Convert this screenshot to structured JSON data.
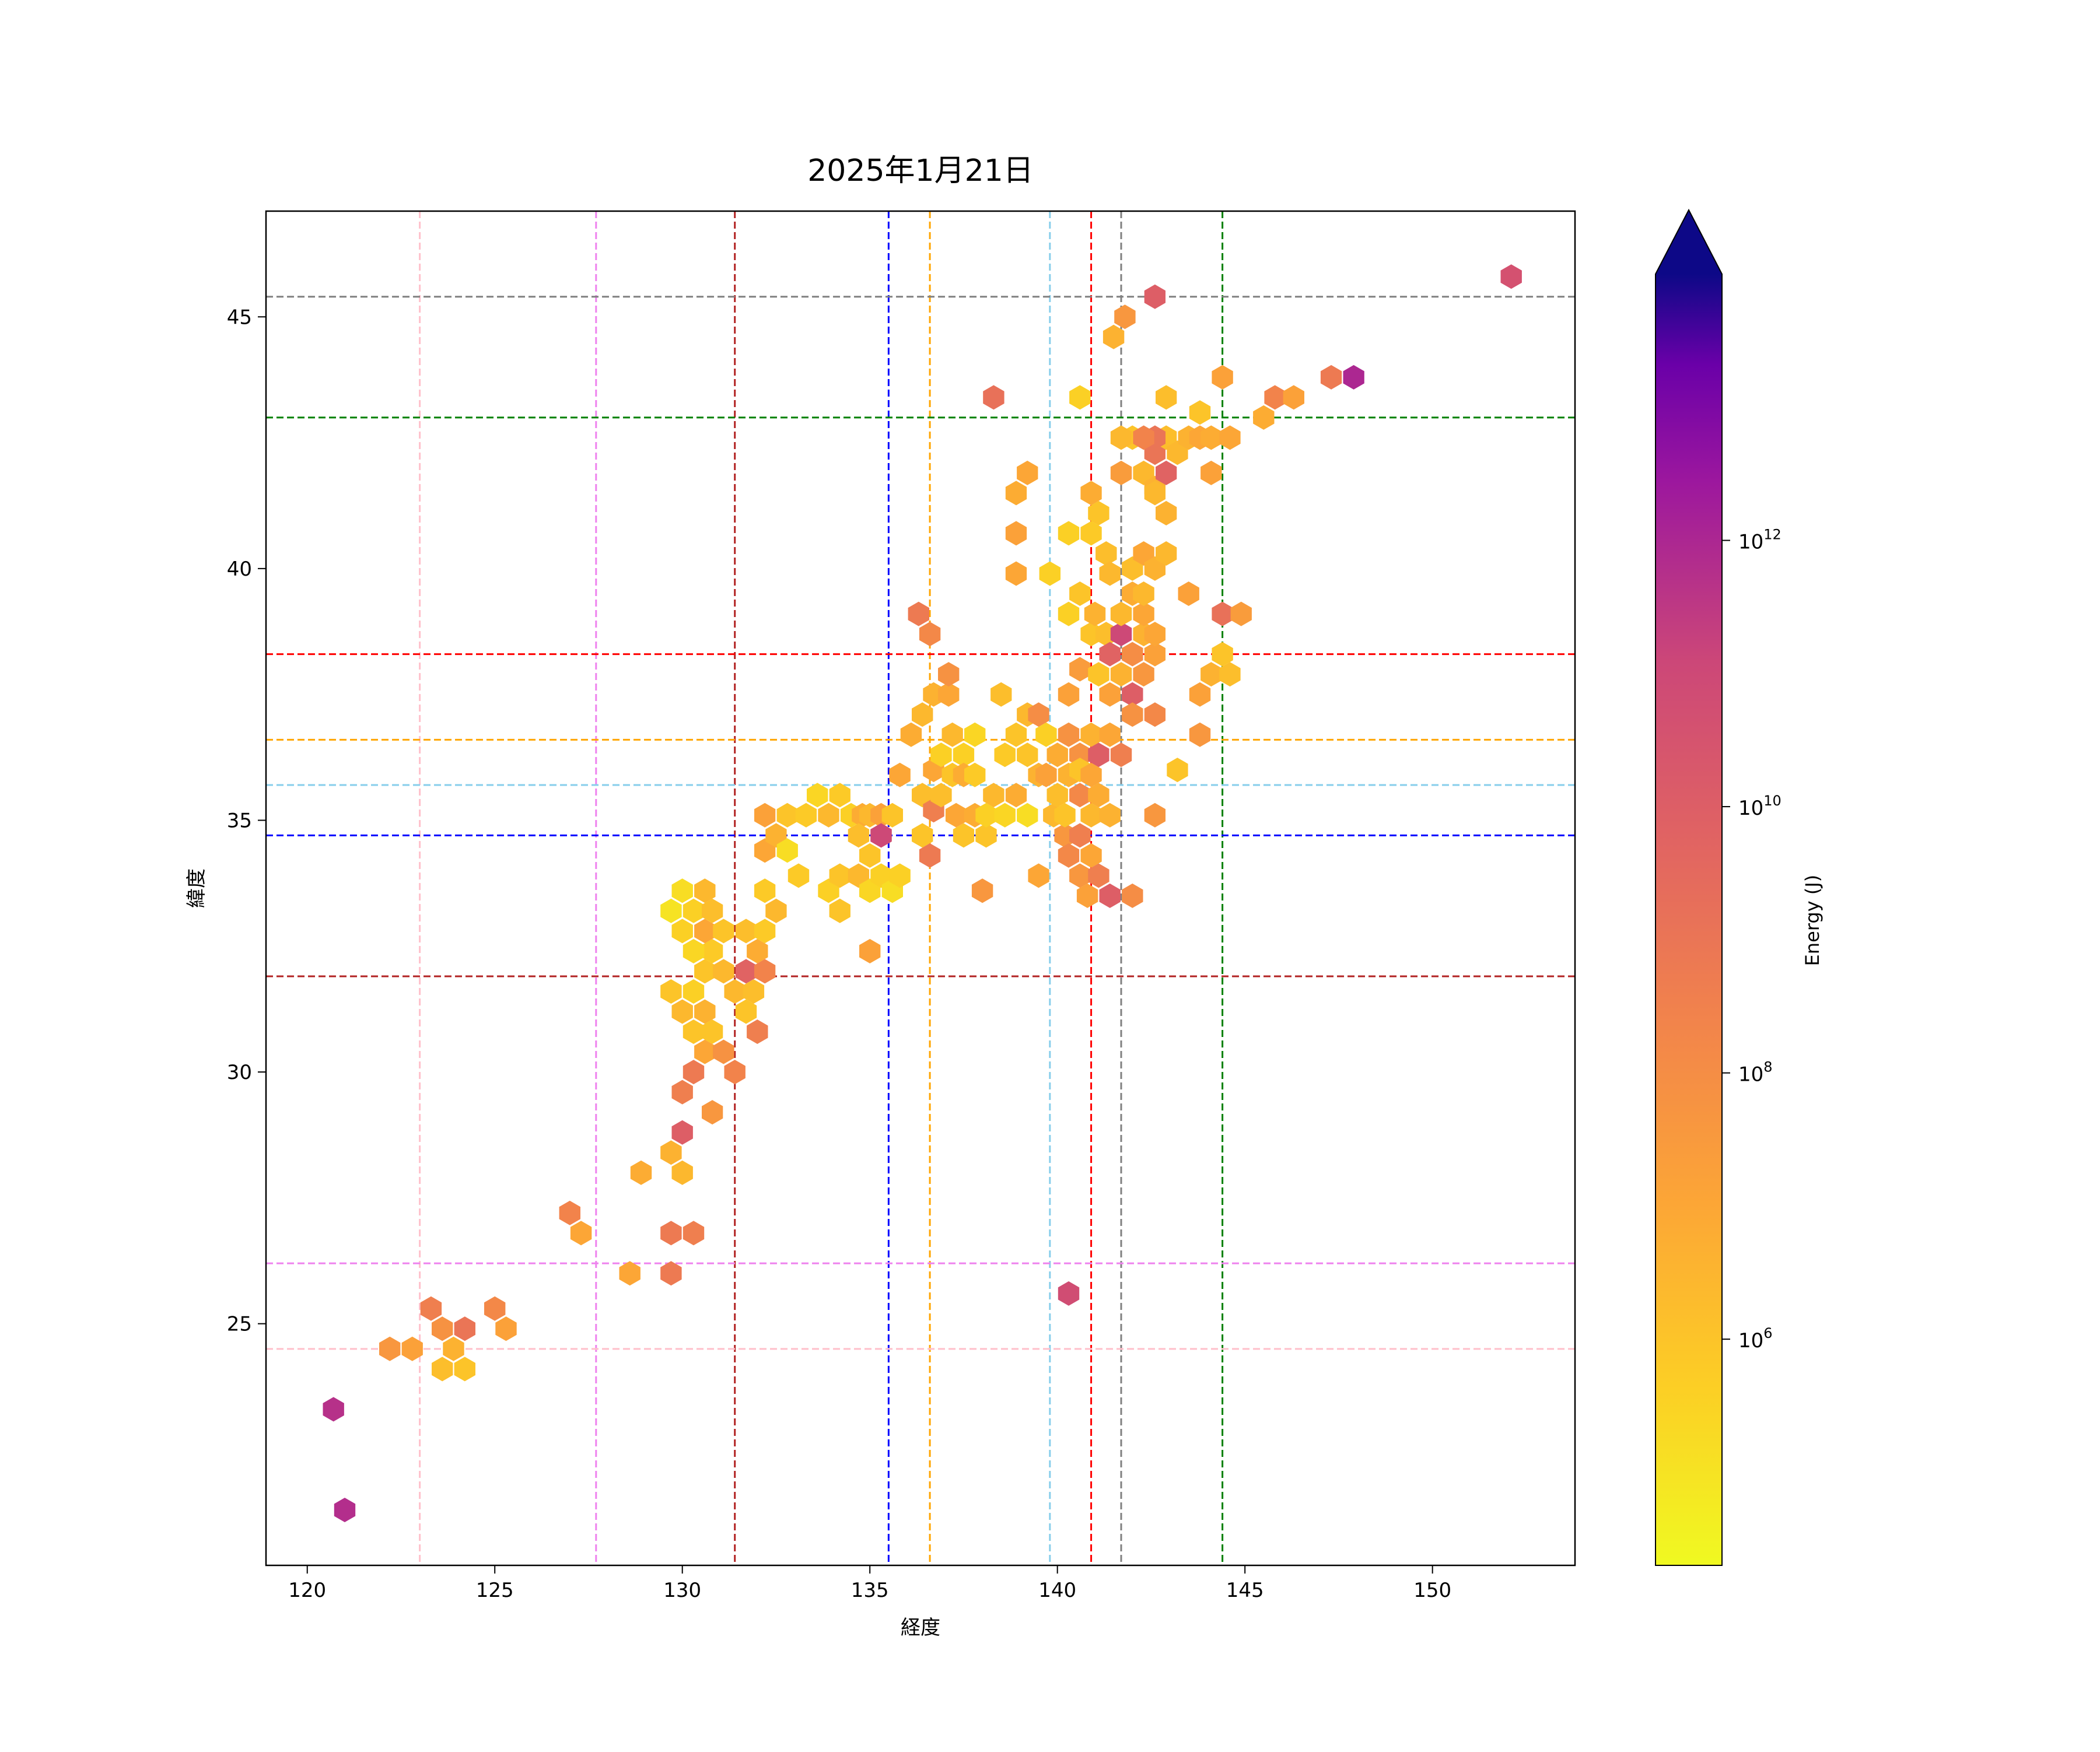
{
  "chart_data": {
    "type": "hexbin",
    "title": "2025年1月21日",
    "xlabel": "経度",
    "ylabel": "緯度",
    "xlim": [
      118.9,
      153.8
    ],
    "ylim": [
      20.2,
      47.1
    ],
    "x_ticks": [
      120,
      125,
      130,
      135,
      140,
      145,
      150
    ],
    "y_ticks": [
      25,
      30,
      35,
      40,
      45
    ],
    "grid": false,
    "colorbar": {
      "label": "Energy (J)",
      "scale": "log",
      "colormap": "plasma_r",
      "range": [
        20000,
        100000000000000.0
      ],
      "extend": "max",
      "ticks": [
        {
          "base": "10",
          "exp": "6",
          "value": 1000000.0
        },
        {
          "base": "10",
          "exp": "8",
          "value": 100000000.0
        },
        {
          "base": "10",
          "exp": "10",
          "value": 10000000000.0
        },
        {
          "base": "10",
          "exp": "12",
          "value": 1000000000000.0
        }
      ]
    },
    "reference_lines": {
      "vertical": [
        {
          "x": 123.0,
          "color": "#ffc0cb"
        },
        {
          "x": 127.7,
          "color": "#ee82ee"
        },
        {
          "x": 131.4,
          "color": "#b22222"
        },
        {
          "x": 135.5,
          "color": "#0000ff"
        },
        {
          "x": 136.6,
          "color": "#ffa500"
        },
        {
          "x": 139.8,
          "color": "#87ceeb"
        },
        {
          "x": 140.9,
          "color": "#ff0000"
        },
        {
          "x": 141.7,
          "color": "#808080"
        },
        {
          "x": 144.4,
          "color": "#008000"
        }
      ],
      "horizontal": [
        {
          "y": 24.5,
          "color": "#ffc0cb"
        },
        {
          "y": 26.2,
          "color": "#ee82ee"
        },
        {
          "y": 31.9,
          "color": "#b22222"
        },
        {
          "y": 34.7,
          "color": "#0000ff"
        },
        {
          "y": 35.7,
          "color": "#87ceeb"
        },
        {
          "y": 36.6,
          "color": "#ffa500"
        },
        {
          "y": 38.3,
          "color": "#ff0000"
        },
        {
          "y": 43.0,
          "color": "#008000"
        },
        {
          "y": 45.4,
          "color": "#808080"
        }
      ]
    },
    "points": [
      [
        120.7,
        23.3,
        11.7
      ],
      [
        121.0,
        21.3,
        11.8
      ],
      [
        122.2,
        24.5,
        7.6
      ],
      [
        122.8,
        24.5,
        7.2
      ],
      [
        123.3,
        25.3,
        8.6
      ],
      [
        123.6,
        24.9,
        7.8
      ],
      [
        123.6,
        24.1,
        6.2
      ],
      [
        123.9,
        24.5,
        6.6
      ],
      [
        124.2,
        24.9,
        9.0
      ],
      [
        124.2,
        24.1,
        6.0
      ],
      [
        125.0,
        25.3,
        8.2
      ],
      [
        125.3,
        24.9,
        7.2
      ],
      [
        127.0,
        27.2,
        8.4
      ],
      [
        127.3,
        26.8,
        7.0
      ],
      [
        128.6,
        26.0,
        7.0
      ],
      [
        128.9,
        28.0,
        6.8
      ],
      [
        129.7,
        26.8,
        8.8
      ],
      [
        129.7,
        26.0,
        8.8
      ],
      [
        130.3,
        26.8,
        8.6
      ],
      [
        129.7,
        28.4,
        6.6
      ],
      [
        130.0,
        28.0,
        6.4
      ],
      [
        130.0,
        28.8,
        10.0
      ],
      [
        130.8,
        29.2,
        7.6
      ],
      [
        130.0,
        29.6,
        8.6
      ],
      [
        130.3,
        30.0,
        8.8
      ],
      [
        130.6,
        30.4,
        7.0
      ],
      [
        131.1,
        30.4,
        7.8
      ],
      [
        131.4,
        30.0,
        8.4
      ],
      [
        129.7,
        31.6,
        6.0
      ],
      [
        130.0,
        31.2,
        6.4
      ],
      [
        130.3,
        30.8,
        6.0
      ],
      [
        130.3,
        31.6,
        5.6
      ],
      [
        130.6,
        31.2,
        6.6
      ],
      [
        130.8,
        30.8,
        6.0
      ],
      [
        130.6,
        32.0,
        6.0
      ],
      [
        130.8,
        32.4,
        5.8
      ],
      [
        129.7,
        33.2,
        5.0
      ],
      [
        130.0,
        32.8,
        5.6
      ],
      [
        130.0,
        33.6,
        5.2
      ],
      [
        130.3,
        32.4,
        5.4
      ],
      [
        130.3,
        33.2,
        5.6
      ],
      [
        130.6,
        32.8,
        7.0
      ],
      [
        130.6,
        33.6,
        6.4
      ],
      [
        130.8,
        33.2,
        6.2
      ],
      [
        131.1,
        32.8,
        6.0
      ],
      [
        131.1,
        32.0,
        6.4
      ],
      [
        131.4,
        31.6,
        6.4
      ],
      [
        131.7,
        31.2,
        6.0
      ],
      [
        131.7,
        32.0,
        9.8
      ],
      [
        131.7,
        32.8,
        6.2
      ],
      [
        131.9,
        31.6,
        6.2
      ],
      [
        132.0,
        32.4,
        6.8
      ],
      [
        132.0,
        30.8,
        8.6
      ],
      [
        132.2,
        32.0,
        8.4
      ],
      [
        132.2,
        32.8,
        5.8
      ],
      [
        132.2,
        33.6,
        5.8
      ],
      [
        132.5,
        33.2,
        6.4
      ],
      [
        132.2,
        34.4,
        7.0
      ],
      [
        132.2,
        35.1,
        7.2
      ],
      [
        132.5,
        34.7,
        6.6
      ],
      [
        132.8,
        35.1,
        6.0
      ],
      [
        132.8,
        34.4,
        5.2
      ],
      [
        133.1,
        33.9,
        5.8
      ],
      [
        133.3,
        35.1,
        5.8
      ],
      [
        133.6,
        35.5,
        5.4
      ],
      [
        133.9,
        35.1,
        6.4
      ],
      [
        134.2,
        35.5,
        5.8
      ],
      [
        134.5,
        35.1,
        5.6
      ],
      [
        134.8,
        35.1,
        6.8
      ],
      [
        135.0,
        35.1,
        6.4
      ],
      [
        135.3,
        35.1,
        7.2
      ],
      [
        135.6,
        35.1,
        6.0
      ],
      [
        133.9,
        33.6,
        5.6
      ],
      [
        134.2,
        33.9,
        6.0
      ],
      [
        134.2,
        33.2,
        6.0
      ],
      [
        134.7,
        33.9,
        6.4
      ],
      [
        134.7,
        34.7,
        6.2
      ],
      [
        135.0,
        34.3,
        6.0
      ],
      [
        135.0,
        33.6,
        5.4
      ],
      [
        135.3,
        33.9,
        5.6
      ],
      [
        135.3,
        34.7,
        5.8
      ],
      [
        135.6,
        33.6,
        5.2
      ],
      [
        135.8,
        33.9,
        5.6
      ],
      [
        135.0,
        32.4,
        7.2
      ],
      [
        135.3,
        34.7,
        11.0
      ],
      [
        135.8,
        35.9,
        7.0
      ],
      [
        136.1,
        36.7,
        6.8
      ],
      [
        136.4,
        37.1,
        6.4
      ],
      [
        136.4,
        35.5,
        6.2
      ],
      [
        136.4,
        34.7,
        6.0
      ],
      [
        136.7,
        36.0,
        7.0
      ],
      [
        136.7,
        35.2,
        8.6
      ],
      [
        136.7,
        37.5,
        6.6
      ],
      [
        136.6,
        34.3,
        8.8
      ],
      [
        136.9,
        36.3,
        5.6
      ],
      [
        136.9,
        35.5,
        6.2
      ],
      [
        137.1,
        37.5,
        7.0
      ],
      [
        137.1,
        37.9,
        7.8
      ],
      [
        137.2,
        35.9,
        6.0
      ],
      [
        137.2,
        36.7,
        6.4
      ],
      [
        137.3,
        35.1,
        7.0
      ],
      [
        137.5,
        36.3,
        5.6
      ],
      [
        137.5,
        35.9,
        6.8
      ],
      [
        137.5,
        34.7,
        6.0
      ],
      [
        137.8,
        36.7,
        5.4
      ],
      [
        137.8,
        35.1,
        6.8
      ],
      [
        137.8,
        35.9,
        5.8
      ],
      [
        138.0,
        33.6,
        7.6
      ],
      [
        138.1,
        34.7,
        6.0
      ],
      [
        138.1,
        35.1,
        5.6
      ],
      [
        138.3,
        35.5,
        6.4
      ],
      [
        138.5,
        37.5,
        6.2
      ],
      [
        138.6,
        36.3,
        5.8
      ],
      [
        138.6,
        35.1,
        5.4
      ],
      [
        138.9,
        36.7,
        6.0
      ],
      [
        138.9,
        35.5,
        6.8
      ],
      [
        139.2,
        37.1,
        6.4
      ],
      [
        139.2,
        36.3,
        6.0
      ],
      [
        139.2,
        35.1,
        5.2
      ],
      [
        139.5,
        37.1,
        8.0
      ],
      [
        139.5,
        35.9,
        6.6
      ],
      [
        139.5,
        33.9,
        7.0
      ],
      [
        139.7,
        36.7,
        5.6
      ],
      [
        139.7,
        35.9,
        7.2
      ],
      [
        139.9,
        35.1,
        6.4
      ],
      [
        140.0,
        36.3,
        6.8
      ],
      [
        140.0,
        35.5,
        6.2
      ],
      [
        140.2,
        34.7,
        7.6
      ],
      [
        140.2,
        35.1,
        6.0
      ],
      [
        140.3,
        36.7,
        7.8
      ],
      [
        140.3,
        35.9,
        6.6
      ],
      [
        140.3,
        34.3,
        8.2
      ],
      [
        140.6,
        36.3,
        7.8
      ],
      [
        140.6,
        35.5,
        8.2
      ],
      [
        140.6,
        34.7,
        8.6
      ],
      [
        140.6,
        33.9,
        7.6
      ],
      [
        140.6,
        36.0,
        6.0
      ],
      [
        140.8,
        33.5,
        7.2
      ],
      [
        140.9,
        34.3,
        7.0
      ],
      [
        140.9,
        35.1,
        6.4
      ],
      [
        140.9,
        35.9,
        7.0
      ],
      [
        140.9,
        36.7,
        6.6
      ],
      [
        141.1,
        33.9,
        8.6
      ],
      [
        141.1,
        35.5,
        6.8
      ],
      [
        141.1,
        36.3,
        10.0
      ],
      [
        141.4,
        33.5,
        10.0
      ],
      [
        141.4,
        35.1,
        6.6
      ],
      [
        141.4,
        36.7,
        7.0
      ],
      [
        141.7,
        36.3,
        8.6
      ],
      [
        142.0,
        33.5,
        8.0
      ],
      [
        142.6,
        35.1,
        7.6
      ],
      [
        140.3,
        37.5,
        7.2
      ],
      [
        140.3,
        39.1,
        5.6
      ],
      [
        140.6,
        38.0,
        7.4
      ],
      [
        140.6,
        39.5,
        6.0
      ],
      [
        140.9,
        38.7,
        6.0
      ],
      [
        141.0,
        39.1,
        6.6
      ],
      [
        141.1,
        37.9,
        6.0
      ],
      [
        141.3,
        38.7,
        6.2
      ],
      [
        141.4,
        37.5,
        7.2
      ],
      [
        141.4,
        38.3,
        9.8
      ],
      [
        141.7,
        38.7,
        11.0
      ],
      [
        141.7,
        37.9,
        6.6
      ],
      [
        142.0,
        38.3,
        8.0
      ],
      [
        142.0,
        37.5,
        10.0
      ],
      [
        142.0,
        37.1,
        7.8
      ],
      [
        142.3,
        37.9,
        7.6
      ],
      [
        142.3,
        38.7,
        6.6
      ],
      [
        142.6,
        37.1,
        8.2
      ],
      [
        142.6,
        38.3,
        7.2
      ],
      [
        141.7,
        39.1,
        6.4
      ],
      [
        142.0,
        39.5,
        6.8
      ],
      [
        142.0,
        40.0,
        6.2
      ],
      [
        142.3,
        39.1,
        7.0
      ],
      [
        142.3,
        40.3,
        7.0
      ],
      [
        142.3,
        39.5,
        6.4
      ],
      [
        142.6,
        40.0,
        6.6
      ],
      [
        142.9,
        40.3,
        6.4
      ],
      [
        142.6,
        38.7,
        7.0
      ],
      [
        143.5,
        39.5,
        7.2
      ],
      [
        143.8,
        37.5,
        7.2
      ],
      [
        143.8,
        36.7,
        7.6
      ],
      [
        143.2,
        36.0,
        6.0
      ],
      [
        144.1,
        37.9,
        6.6
      ],
      [
        144.4,
        38.3,
        6.0
      ],
      [
        144.6,
        37.9,
        6.2
      ],
      [
        144.4,
        39.1,
        9.2
      ],
      [
        144.9,
        39.1,
        7.4
      ],
      [
        140.9,
        40.7,
        5.8
      ],
      [
        141.1,
        41.1,
        6.0
      ],
      [
        141.3,
        40.3,
        6.2
      ],
      [
        141.4,
        39.9,
        6.4
      ],
      [
        140.9,
        41.5,
        6.8
      ],
      [
        140.3,
        40.7,
        5.6
      ],
      [
        138.9,
        40.7,
        7.2
      ],
      [
        138.9,
        39.9,
        7.0
      ],
      [
        139.8,
        39.9,
        5.6
      ],
      [
        138.9,
        41.5,
        6.8
      ],
      [
        139.2,
        41.9,
        7.0
      ],
      [
        141.7,
        41.9,
        7.4
      ],
      [
        142.0,
        42.6,
        6.0
      ],
      [
        142.3,
        41.9,
        6.4
      ],
      [
        142.6,
        42.3,
        9.0
      ],
      [
        142.6,
        41.6,
        6.6
      ],
      [
        142.9,
        41.9,
        9.8
      ],
      [
        142.9,
        42.6,
        6.2
      ],
      [
        142.6,
        41.5,
        6.4
      ],
      [
        143.2,
        42.3,
        6.4
      ],
      [
        143.5,
        42.6,
        6.6
      ],
      [
        143.8,
        42.6,
        7.0
      ],
      [
        144.1,
        42.6,
        6.8
      ],
      [
        144.1,
        41.9,
        7.2
      ],
      [
        144.6,
        42.6,
        7.0
      ],
      [
        143.8,
        43.1,
        6.0
      ],
      [
        142.9,
        43.4,
        6.2
      ],
      [
        144.4,
        43.8,
        7.2
      ],
      [
        142.6,
        42.6,
        9.0
      ],
      [
        142.3,
        42.6,
        8.4
      ],
      [
        142.9,
        41.1,
        6.6
      ],
      [
        141.7,
        42.6,
        6.4
      ],
      [
        145.5,
        43.0,
        6.8
      ],
      [
        145.8,
        43.4,
        8.4
      ],
      [
        146.3,
        43.4,
        7.2
      ],
      [
        147.3,
        43.8,
        8.8
      ],
      [
        147.9,
        43.8,
        12.0
      ],
      [
        141.5,
        44.6,
        6.6
      ],
      [
        141.8,
        45.0,
        7.6
      ],
      [
        142.6,
        45.4,
        10.0
      ],
      [
        152.1,
        45.8,
        10.6
      ],
      [
        140.6,
        43.4,
        5.6
      ],
      [
        138.3,
        43.4,
        9.2
      ],
      [
        136.3,
        39.1,
        8.8
      ],
      [
        136.6,
        38.7,
        8.2
      ],
      [
        140.3,
        25.6,
        10.8
      ]
    ]
  }
}
